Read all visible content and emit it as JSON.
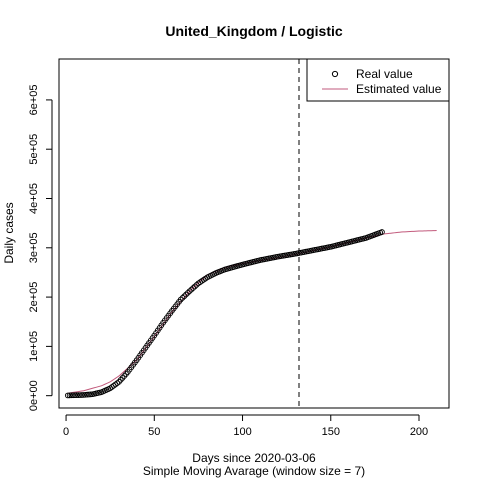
{
  "chart_data": {
    "type": "line",
    "title": "United_Kingdom / Logistic",
    "xlabel": "Days since 2020-03-06",
    "xlabel2": "Simple Moving Avarage (window size = 7)",
    "ylabel": "Daily cases",
    "xlim": [
      -4,
      217
    ],
    "ylim": [
      -25000,
      683000
    ],
    "x_ticks": [
      0,
      50,
      100,
      150,
      200
    ],
    "x_tick_labels": [
      "0",
      "50",
      "100",
      "150",
      "200"
    ],
    "y_ticks": [
      0,
      100000,
      200000,
      300000,
      400000,
      500000,
      600000
    ],
    "y_tick_labels": [
      "0e+00",
      "1e+05",
      "2e+05",
      "3e+05",
      "4e+05",
      "5e+05",
      "6e+05"
    ],
    "vline_x": 132,
    "legend_position": "top-right",
    "series": [
      {
        "name": "Real value",
        "kind": "points",
        "color": "#000000",
        "anchors": [
          [
            1,
            500
          ],
          [
            10,
            1500
          ],
          [
            15,
            3000
          ],
          [
            20,
            7000
          ],
          [
            25,
            15000
          ],
          [
            30,
            28000
          ],
          [
            35,
            48000
          ],
          [
            40,
            72000
          ],
          [
            45,
            97000
          ],
          [
            50,
            122000
          ],
          [
            55,
            148000
          ],
          [
            60,
            172000
          ],
          [
            65,
            195000
          ],
          [
            70,
            212000
          ],
          [
            75,
            228000
          ],
          [
            80,
            240000
          ],
          [
            85,
            249000
          ],
          [
            90,
            256000
          ],
          [
            95,
            261000
          ],
          [
            100,
            266000
          ],
          [
            110,
            275000
          ],
          [
            120,
            282000
          ],
          [
            130,
            288000
          ],
          [
            140,
            295000
          ],
          [
            150,
            302000
          ],
          [
            160,
            311000
          ],
          [
            170,
            320000
          ],
          [
            179,
            332000
          ]
        ]
      },
      {
        "name": "Estimated value",
        "kind": "line",
        "color": "#c25a7c",
        "anchors": [
          [
            1,
            5000
          ],
          [
            10,
            10000
          ],
          [
            15,
            15000
          ],
          [
            20,
            20000
          ],
          [
            25,
            28000
          ],
          [
            30,
            40000
          ],
          [
            40,
            72000
          ],
          [
            50,
            120000
          ],
          [
            60,
            170000
          ],
          [
            70,
            212000
          ],
          [
            80,
            245000
          ],
          [
            90,
            260000
          ],
          [
            100,
            268000
          ],
          [
            120,
            280000
          ],
          [
            132,
            288000
          ],
          [
            150,
            302000
          ],
          [
            170,
            320000
          ],
          [
            180,
            328000
          ],
          [
            190,
            332000
          ],
          [
            200,
            334000
          ],
          [
            210,
            335000
          ]
        ]
      }
    ]
  }
}
